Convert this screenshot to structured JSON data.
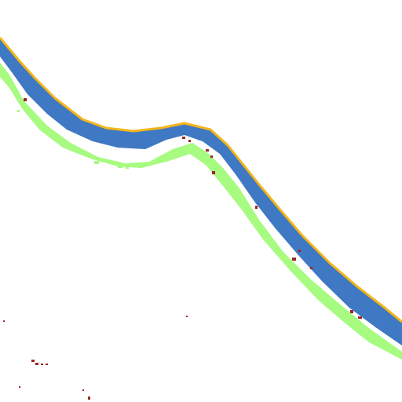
{
  "map": {
    "colors": {
      "background": "#ffffff",
      "water": "#3f78c3",
      "water_edge": "#f2b51a",
      "vegetation": "#a6fb80",
      "debris": "#9b2626"
    }
  }
}
